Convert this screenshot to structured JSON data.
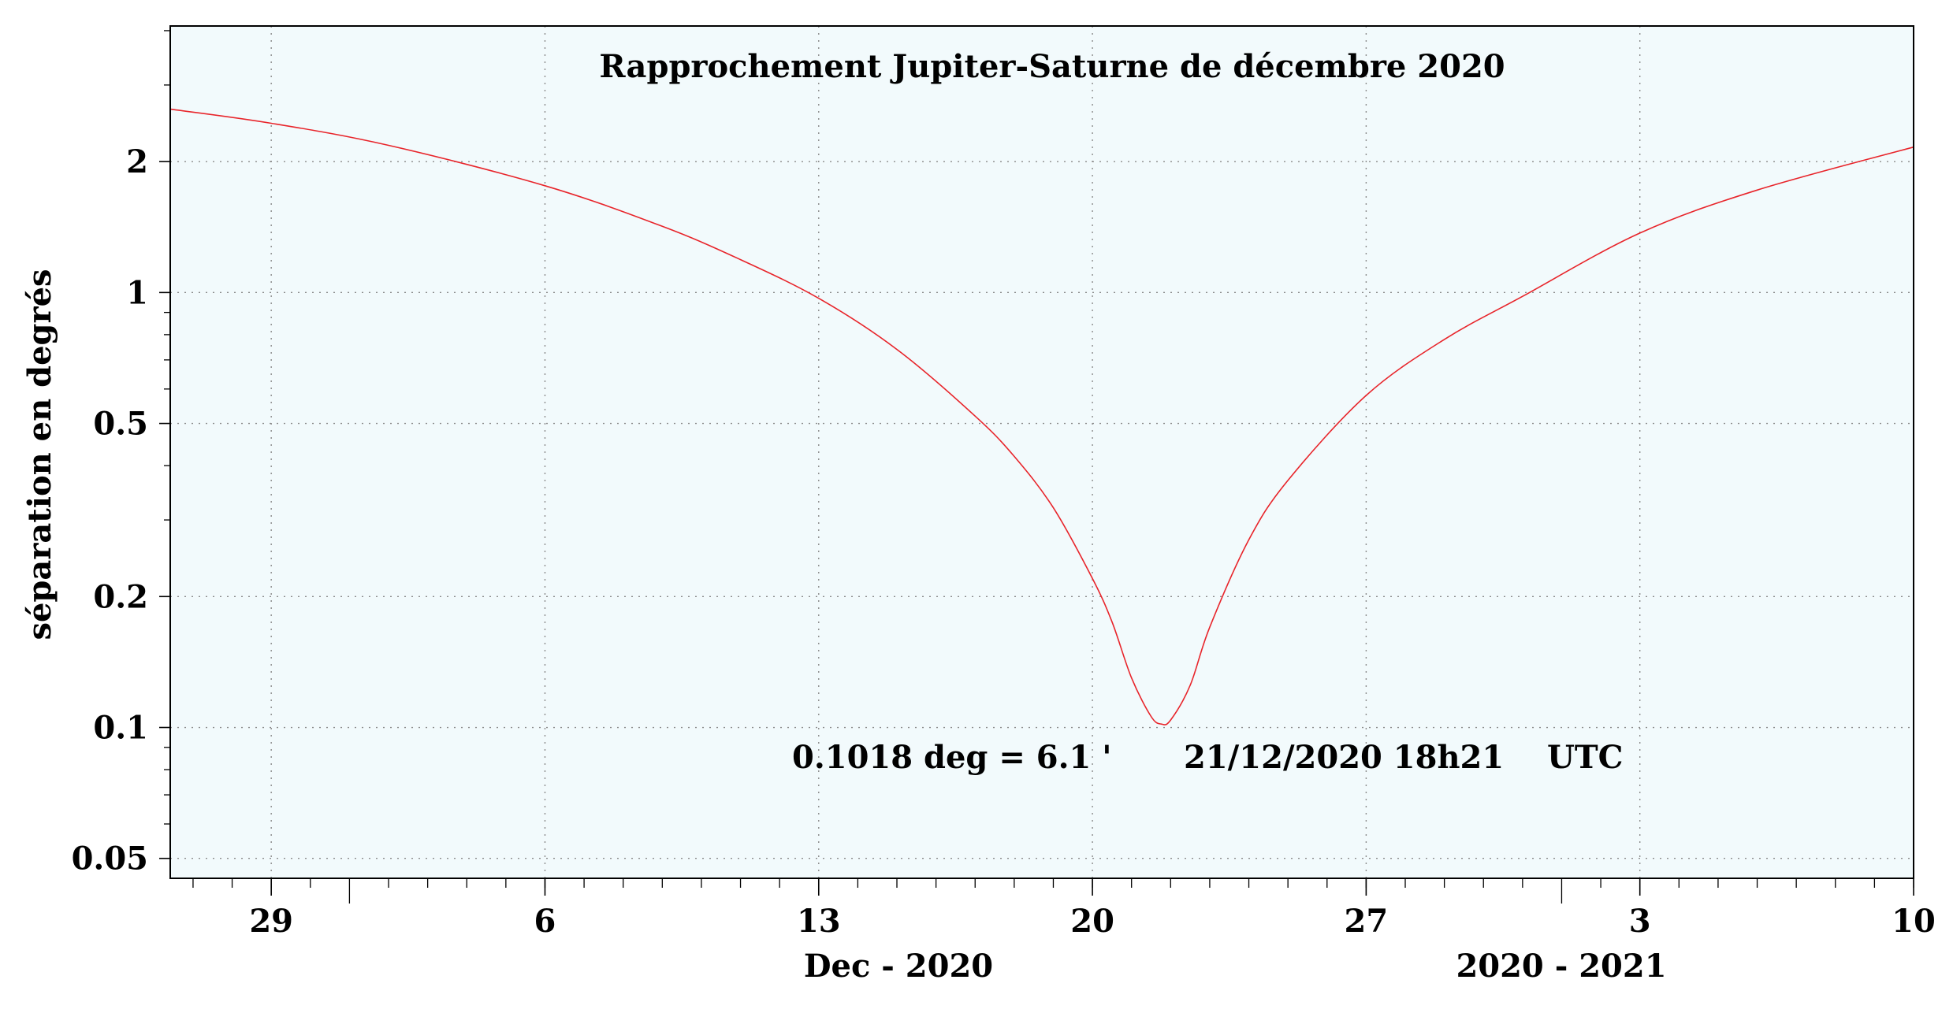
{
  "chart_data": {
    "type": "line",
    "title": "Rapprochement Jupiter-Saturne de décembre 2020",
    "ylabel": "séparation en degrés",
    "x_group_labels": [
      "Dec - 2020",
      "2020 - 2021"
    ],
    "x_ticks": [
      {
        "date": "2020-11-29",
        "label": "29"
      },
      {
        "date": "2020-12-06",
        "label": "6"
      },
      {
        "date": "2020-12-13",
        "label": "13"
      },
      {
        "date": "2020-12-20",
        "label": "20"
      },
      {
        "date": "2020-12-27",
        "label": "27"
      },
      {
        "date": "2021-01-03",
        "label": "3"
      },
      {
        "date": "2021-01-10",
        "label": "10"
      }
    ],
    "y_ticks": [
      {
        "value": 0.05,
        "label": "0.05"
      },
      {
        "value": 0.1,
        "label": "0.1"
      },
      {
        "value": 0.2,
        "label": "0.2"
      },
      {
        "value": 0.5,
        "label": "0.5"
      },
      {
        "value": 1,
        "label": "1"
      },
      {
        "value": 2,
        "label": "2"
      }
    ],
    "y_scale": "log",
    "ylim": [
      0.045,
      4.1
    ],
    "xlim": [
      "2020-11-26T10:00",
      "2021-01-10T00:00"
    ],
    "grid": true,
    "colors": {
      "series": "#e8242a",
      "plot_background": "#f2fafc",
      "grid": "#8a8a8a"
    },
    "series": [
      {
        "points": [
          [
            "2020-11-26T10:00",
            2.64
          ],
          [
            "2020-11-29T00:00",
            2.45
          ],
          [
            "2020-12-02T00:00",
            2.18
          ],
          [
            "2020-12-06T00:00",
            1.76
          ],
          [
            "2020-12-09T00:00",
            1.42
          ],
          [
            "2020-12-11T00:00",
            1.19
          ],
          [
            "2020-12-13T00:00",
            0.97
          ],
          [
            "2020-12-15T00:00",
            0.74
          ],
          [
            "2020-12-17T00:00",
            0.52
          ],
          [
            "2020-12-18T00:00",
            0.42
          ],
          [
            "2020-12-19T00:00",
            0.32
          ],
          [
            "2020-12-20T00:00",
            0.22
          ],
          [
            "2020-12-20T12:00",
            0.175
          ],
          [
            "2020-12-21T00:00",
            0.13
          ],
          [
            "2020-12-21T12:00",
            0.106
          ],
          [
            "2020-12-21T18:21",
            0.1018
          ],
          [
            "2020-12-22T00:00",
            0.104
          ],
          [
            "2020-12-22T12:00",
            0.125
          ],
          [
            "2020-12-23T00:00",
            0.17
          ],
          [
            "2020-12-24T00:00",
            0.27
          ],
          [
            "2020-12-25T00:00",
            0.37
          ],
          [
            "2020-12-27T00:00",
            0.58
          ],
          [
            "2020-12-29T00:00",
            0.78
          ],
          [
            "2020-12-31T00:00",
            0.98
          ],
          [
            "2021-01-03T00:00",
            1.37
          ],
          [
            "2021-01-06T00:00",
            1.72
          ],
          [
            "2021-01-10T00:00",
            2.16
          ]
        ]
      }
    ],
    "annotations": [
      "0.1018 deg = 6.1 '",
      "21/12/2020 18h21",
      "UTC"
    ]
  }
}
